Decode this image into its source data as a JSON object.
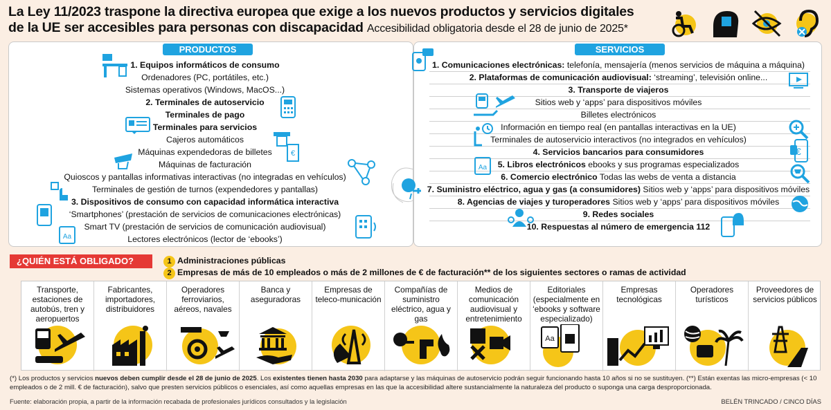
{
  "header": {
    "title_line1": "La Ley 11/2023 traspone la directiva europea que exige a los nuevos productos y servicios digitales",
    "title_line2": "de la UE ser accesibles para personas con discapacidad",
    "subtitle": "Accesibilidad obligatoria desde el 28 de junio de 2025*"
  },
  "productos": {
    "banner": "PRODUCTOS",
    "lines": [
      {
        "bold": "1. Equipos informáticos de consumo",
        "text": ""
      },
      {
        "bold": "",
        "text": "Ordenadores (PC, portátiles, etc.)"
      },
      {
        "bold": "",
        "text": "Sistemas operativos (Windows, MacOS...)"
      },
      {
        "bold": "2. Terminales de autoservicio",
        "text": ""
      },
      {
        "bold": "Terminales de pago",
        "text": ""
      },
      {
        "bold": "Terminales para servicios",
        "text": ""
      },
      {
        "bold": "",
        "text": "Cajeros automáticos"
      },
      {
        "bold": "",
        "text": "Máquinas expendedoras de billetes"
      },
      {
        "bold": "",
        "text": "Máquinas de facturación"
      },
      {
        "bold": "",
        "text": "Quioscos y pantallas informativas interactivas (no integradas en vehículos)"
      },
      {
        "bold": "",
        "text": "Terminales de gestión de turnos (expendedores y pantallas)"
      },
      {
        "bold": "3. Dispositivos de consumo con capacidad informática interactiva",
        "text": ""
      },
      {
        "bold": "",
        "text": "‘Smartphones’ (prestación de servicios de comunicaciones electrónicas)"
      },
      {
        "bold": "",
        "text": "Smart TV (prestación de servicios de comunicación audiovisual)"
      },
      {
        "bold": "",
        "text": "Lectores electrónicos (lector de ‘ebooks’)"
      }
    ]
  },
  "servicios": {
    "banner": "SERVICIOS",
    "lines": [
      {
        "bold": "1. Comunicaciones electrónicas:",
        "text": " telefonía, mensajería (menos servicios de máquina a máquina)"
      },
      {
        "bold": "2. Plataformas de comunicación audiovisual:",
        "text": " ‘streaming’, televisión online..."
      },
      {
        "bold": "3. Transporte de viajeros",
        "text": ""
      },
      {
        "bold": "",
        "text": "Sitios web y ‘apps’ para dispositivos móviles"
      },
      {
        "bold": "",
        "text": "Billetes electrónicos"
      },
      {
        "bold": "",
        "text": "Información en tiempo real (en pantallas interactivas en la UE)"
      },
      {
        "bold": "",
        "text": "Terminales de autoservicio interactivos (no integrados en vehículos)"
      },
      {
        "bold": "4. Servicios bancarios para consumidores",
        "text": ""
      },
      {
        "bold": "5. Libros electrónicos",
        "text": " ebooks y sus programas especializados"
      },
      {
        "bold": "6. Comercio electrónico",
        "text": " Todas las webs de venta a distancia"
      },
      {
        "bold": "7. Suministro eléctrico, agua y gas (a consumidores)",
        "text": " Sitios web y ‘apps’ para dispositivos móviles"
      },
      {
        "bold": "8. Agencias de viajes y turoperadores",
        "text": " Sitios web y ‘apps’ para dispositivos móviles"
      },
      {
        "bold": "9. Redes sociales",
        "text": ""
      },
      {
        "bold": "10. Respuestas al número de emergencia 112",
        "text": ""
      }
    ]
  },
  "quien": {
    "banner": "¿QUIÉN ESTÁ OBLIGADO?",
    "items": [
      {
        "num": "1",
        "text": "Administraciones públicas"
      },
      {
        "num": "2",
        "text": "Empresas de más de 10 empleados o más de 2 millones de € de facturación** de los siguientes sectores o ramas de actividad"
      }
    ]
  },
  "sectors": [
    {
      "label": "Transporte, estaciones de autobús, tren y aeropuertos",
      "icon": "bus-plane-icon"
    },
    {
      "label": "Fabricantes, importadores, distribuidores",
      "icon": "factory-icon"
    },
    {
      "label": "Operadores ferroviarios, aéreos, navales",
      "icon": "train-gear-icon"
    },
    {
      "label": "Banca y aseguradoras",
      "icon": "bank-icon"
    },
    {
      "label": "Empresas de teleco-municación",
      "icon": "antenna-icon"
    },
    {
      "label": "Compañías de suministro eléctrico, agua y gas",
      "icon": "utilities-icon"
    },
    {
      "label": "Medios de comunicación audiovisual y entretenimiento",
      "icon": "media-icon"
    },
    {
      "label": "Editoriales (especialmente en ‘ebooks y software especializado)",
      "icon": "ebook-icon"
    },
    {
      "label": "Empresas tecnológicas",
      "icon": "tech-icon"
    },
    {
      "label": "Operadores turísticos",
      "icon": "tourism-icon"
    },
    {
      "label": "Proveedores de servicios públicos",
      "icon": "public-services-icon"
    }
  ],
  "footnote": {
    "p1": "(*) Los productos y servicios ",
    "b1": "nuevos deben cumplir desde el 28 de junio de 2025",
    "p2": ". Los ",
    "b2": "existentes tienen hasta 2030",
    "p3": " para adaptarse y las máquinas de autoservicio podrán seguir funcionando hasta 10 años si no se sustituyen. (**) Están exentas las micro-empresas (< 10 empleados o de 2 mill. € de facturación), salvo que presten servicios públicos o esenciales, así como aquellas empresas en las que la accesibilidad altere sustancialmente la naturaleza del producto o suponga una carga desproporcionada."
  },
  "source": "Fuente: elaboración propia, a partir de la información recabada de profesionales jurídicos consultados y la legislación",
  "credit": "BELÉN TRINCADO / CINCO DÍAS",
  "colors": {
    "accent_blue": "#1fa3e0",
    "yellow": "#f5c518",
    "red": "#e53935",
    "background": "#fbeee3"
  }
}
